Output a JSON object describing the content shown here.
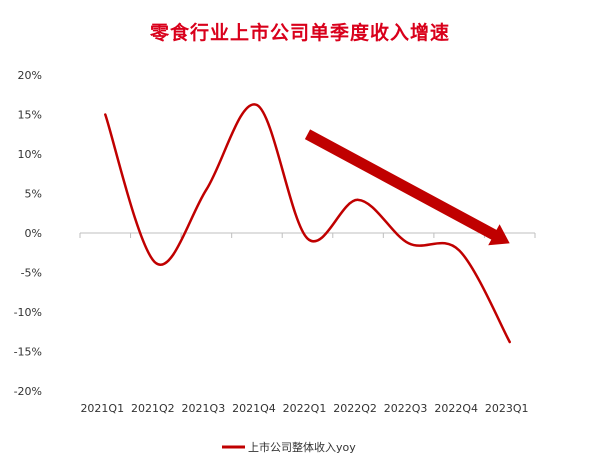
{
  "chart_data": {
    "type": "line",
    "title": "零食行业上市公司单季度收入增速",
    "categories": [
      "2021Q1",
      "2021Q2",
      "2021Q3",
      "2021Q4",
      "2022Q1",
      "2022Q2",
      "2022Q3",
      "2022Q4",
      "2023Q1"
    ],
    "series": [
      {
        "name": "上市公司整体收入yoy",
        "values": [
          15.0,
          -3.8,
          5.5,
          16.2,
          -0.7,
          4.2,
          -1.3,
          -2.2,
          -13.8
        ],
        "color": "#c00000"
      }
    ],
    "ylim": [
      -20,
      20
    ],
    "yticks": [
      20,
      15,
      10,
      5,
      0,
      -5,
      -10,
      -15,
      -20
    ],
    "ytick_labels": [
      "20%",
      "15%",
      "10%",
      "5%",
      "0%",
      "-5%",
      "-10%",
      "-15%",
      "-20%"
    ],
    "xlabel": "",
    "ylabel": "",
    "grid": false,
    "legend_position": "bottom-center",
    "annotations": [
      {
        "type": "arrow",
        "direction": "down-right",
        "color": "#c00000",
        "from": {
          "category_index": 4.0,
          "value": 12.5
        },
        "to": {
          "category_index": 8.0,
          "value": -1.3
        }
      }
    ]
  }
}
